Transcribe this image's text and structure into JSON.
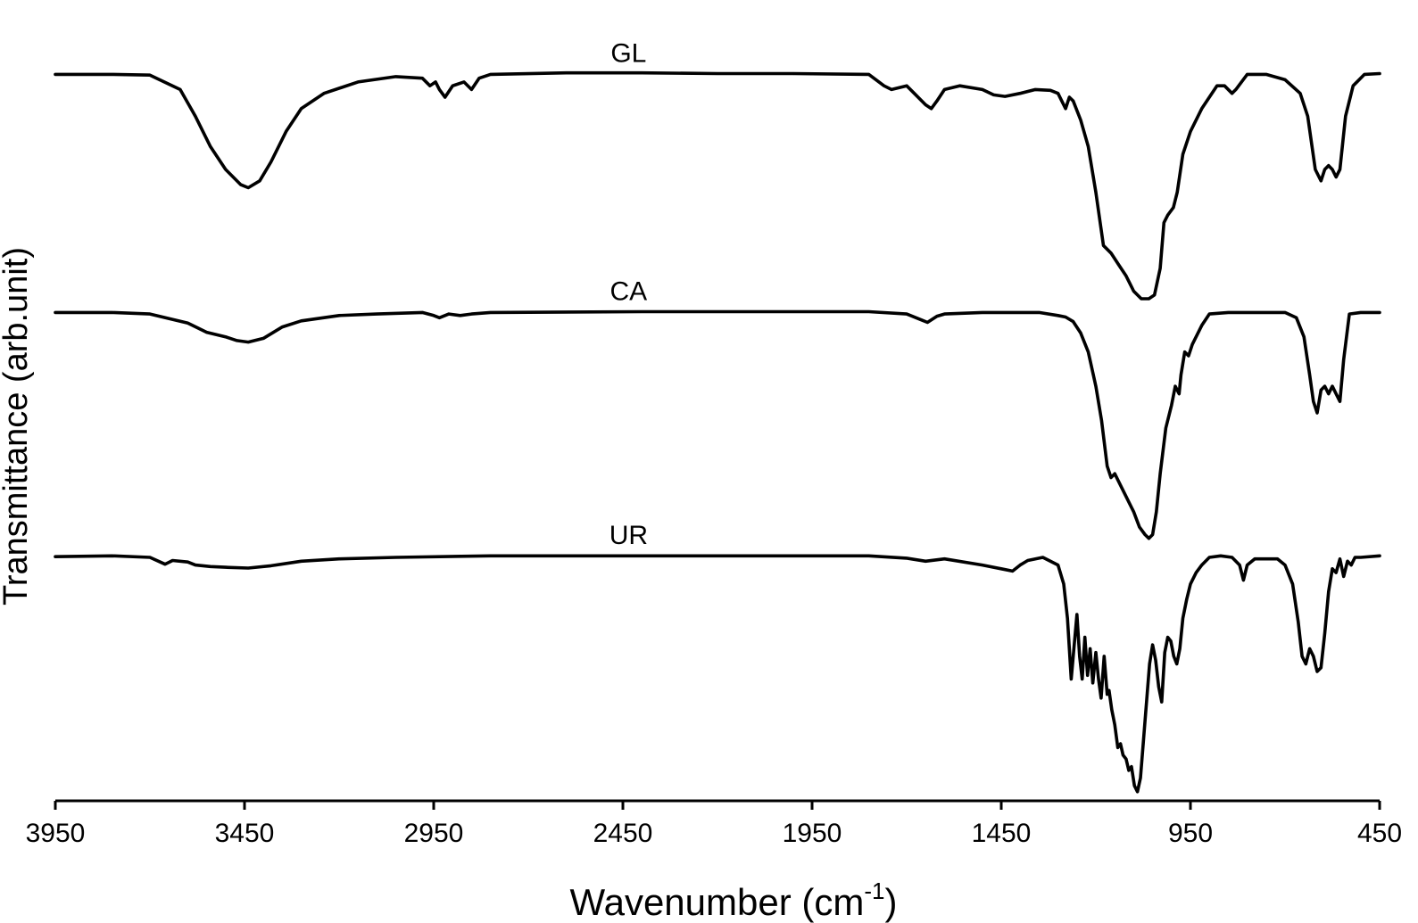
{
  "chart_data": {
    "type": "line",
    "title": "",
    "xlabel": "Wavenumber (cm",
    "xlabel_sup": "-1",
    "xlabel_close": ")",
    "ylabel": "Transmittance (arb.unit)",
    "xlim": [
      3950,
      450
    ],
    "x_reversed": true,
    "ylim": [
      0,
      1
    ],
    "y_ticks_shown": false,
    "grid": false,
    "legend": "none",
    "x_ticks": [
      3950,
      3450,
      2950,
      2450,
      1950,
      1450,
      950,
      450
    ],
    "x_tick_labels": [
      "3950",
      "3450",
      "2950",
      "2450",
      "1950",
      "1450",
      "950",
      "450"
    ],
    "line_color": "#000000",
    "series": [
      {
        "name": "GL",
        "points": [
          [
            3950,
            0.955
          ],
          [
            3800,
            0.955
          ],
          [
            3700,
            0.954
          ],
          [
            3620,
            0.935
          ],
          [
            3580,
            0.9
          ],
          [
            3540,
            0.86
          ],
          [
            3500,
            0.83
          ],
          [
            3460,
            0.81
          ],
          [
            3440,
            0.806
          ],
          [
            3410,
            0.815
          ],
          [
            3380,
            0.84
          ],
          [
            3340,
            0.88
          ],
          [
            3300,
            0.91
          ],
          [
            3240,
            0.93
          ],
          [
            3150,
            0.945
          ],
          [
            3050,
            0.952
          ],
          [
            2980,
            0.95
          ],
          [
            2960,
            0.94
          ],
          [
            2945,
            0.945
          ],
          [
            2935,
            0.935
          ],
          [
            2920,
            0.925
          ],
          [
            2900,
            0.94
          ],
          [
            2870,
            0.945
          ],
          [
            2850,
            0.935
          ],
          [
            2830,
            0.95
          ],
          [
            2800,
            0.955
          ],
          [
            2600,
            0.957
          ],
          [
            2400,
            0.957
          ],
          [
            2200,
            0.956
          ],
          [
            2000,
            0.956
          ],
          [
            1800,
            0.955
          ],
          [
            1760,
            0.94
          ],
          [
            1740,
            0.935
          ],
          [
            1700,
            0.94
          ],
          [
            1680,
            0.93
          ],
          [
            1650,
            0.915
          ],
          [
            1635,
            0.91
          ],
          [
            1620,
            0.92
          ],
          [
            1600,
            0.935
          ],
          [
            1560,
            0.94
          ],
          [
            1500,
            0.935
          ],
          [
            1470,
            0.928
          ],
          [
            1440,
            0.926
          ],
          [
            1400,
            0.93
          ],
          [
            1360,
            0.935
          ],
          [
            1320,
            0.934
          ],
          [
            1300,
            0.93
          ],
          [
            1290,
            0.92
          ],
          [
            1280,
            0.91
          ],
          [
            1270,
            0.925
          ],
          [
            1260,
            0.92
          ],
          [
            1240,
            0.895
          ],
          [
            1220,
            0.86
          ],
          [
            1200,
            0.8
          ],
          [
            1180,
            0.73
          ],
          [
            1160,
            0.72
          ],
          [
            1140,
            0.705
          ],
          [
            1120,
            0.69
          ],
          [
            1100,
            0.67
          ],
          [
            1080,
            0.66
          ],
          [
            1060,
            0.66
          ],
          [
            1045,
            0.665
          ],
          [
            1030,
            0.7
          ],
          [
            1020,
            0.76
          ],
          [
            1010,
            0.77
          ],
          [
            995,
            0.78
          ],
          [
            985,
            0.8
          ],
          [
            970,
            0.85
          ],
          [
            950,
            0.88
          ],
          [
            920,
            0.91
          ],
          [
            880,
            0.94
          ],
          [
            860,
            0.94
          ],
          [
            840,
            0.93
          ],
          [
            830,
            0.935
          ],
          [
            800,
            0.955
          ],
          [
            750,
            0.955
          ],
          [
            700,
            0.948
          ],
          [
            660,
            0.93
          ],
          [
            640,
            0.9
          ],
          [
            620,
            0.83
          ],
          [
            605,
            0.815
          ],
          [
            595,
            0.83
          ],
          [
            585,
            0.835
          ],
          [
            575,
            0.83
          ],
          [
            565,
            0.82
          ],
          [
            555,
            0.83
          ],
          [
            540,
            0.9
          ],
          [
            520,
            0.94
          ],
          [
            490,
            0.955
          ],
          [
            450,
            0.956
          ]
        ]
      },
      {
        "name": "CA",
        "points": [
          [
            3950,
            0.642
          ],
          [
            3800,
            0.642
          ],
          [
            3700,
            0.64
          ],
          [
            3600,
            0.628
          ],
          [
            3550,
            0.616
          ],
          [
            3500,
            0.61
          ],
          [
            3470,
            0.605
          ],
          [
            3440,
            0.603
          ],
          [
            3400,
            0.608
          ],
          [
            3350,
            0.623
          ],
          [
            3300,
            0.631
          ],
          [
            3200,
            0.638
          ],
          [
            3100,
            0.64
          ],
          [
            2980,
            0.642
          ],
          [
            2950,
            0.638
          ],
          [
            2935,
            0.635
          ],
          [
            2910,
            0.64
          ],
          [
            2880,
            0.638
          ],
          [
            2850,
            0.64
          ],
          [
            2800,
            0.642
          ],
          [
            2400,
            0.643
          ],
          [
            2000,
            0.643
          ],
          [
            1800,
            0.643
          ],
          [
            1700,
            0.64
          ],
          [
            1660,
            0.632
          ],
          [
            1645,
            0.629
          ],
          [
            1620,
            0.637
          ],
          [
            1600,
            0.64
          ],
          [
            1500,
            0.642
          ],
          [
            1350,
            0.642
          ],
          [
            1300,
            0.638
          ],
          [
            1280,
            0.636
          ],
          [
            1260,
            0.63
          ],
          [
            1240,
            0.615
          ],
          [
            1220,
            0.59
          ],
          [
            1200,
            0.545
          ],
          [
            1185,
            0.5
          ],
          [
            1170,
            0.44
          ],
          [
            1160,
            0.425
          ],
          [
            1150,
            0.43
          ],
          [
            1140,
            0.42
          ],
          [
            1120,
            0.4
          ],
          [
            1100,
            0.38
          ],
          [
            1085,
            0.36
          ],
          [
            1070,
            0.35
          ],
          [
            1060,
            0.345
          ],
          [
            1050,
            0.35
          ],
          [
            1040,
            0.38
          ],
          [
            1030,
            0.43
          ],
          [
            1015,
            0.49
          ],
          [
            1000,
            0.52
          ],
          [
            990,
            0.545
          ],
          [
            980,
            0.535
          ],
          [
            975,
            0.56
          ],
          [
            965,
            0.59
          ],
          [
            955,
            0.585
          ],
          [
            945,
            0.6
          ],
          [
            920,
            0.625
          ],
          [
            900,
            0.64
          ],
          [
            850,
            0.642
          ],
          [
            800,
            0.642
          ],
          [
            700,
            0.642
          ],
          [
            670,
            0.635
          ],
          [
            650,
            0.61
          ],
          [
            635,
            0.56
          ],
          [
            625,
            0.525
          ],
          [
            615,
            0.51
          ],
          [
            605,
            0.54
          ],
          [
            595,
            0.545
          ],
          [
            585,
            0.535
          ],
          [
            575,
            0.545
          ],
          [
            565,
            0.535
          ],
          [
            555,
            0.525
          ],
          [
            545,
            0.58
          ],
          [
            530,
            0.64
          ],
          [
            500,
            0.642
          ],
          [
            450,
            0.642
          ]
        ]
      },
      {
        "name": "UR",
        "points": [
          [
            3950,
            0.321
          ],
          [
            3800,
            0.322
          ],
          [
            3700,
            0.32
          ],
          [
            3660,
            0.311
          ],
          [
            3640,
            0.316
          ],
          [
            3600,
            0.314
          ],
          [
            3580,
            0.31
          ],
          [
            3560,
            0.309
          ],
          [
            3540,
            0.308
          ],
          [
            3500,
            0.307
          ],
          [
            3440,
            0.306
          ],
          [
            3380,
            0.309
          ],
          [
            3300,
            0.315
          ],
          [
            3200,
            0.318
          ],
          [
            3050,
            0.32
          ],
          [
            2800,
            0.322
          ],
          [
            2400,
            0.322
          ],
          [
            2000,
            0.322
          ],
          [
            1800,
            0.322
          ],
          [
            1700,
            0.319
          ],
          [
            1650,
            0.315
          ],
          [
            1600,
            0.318
          ],
          [
            1500,
            0.31
          ],
          [
            1450,
            0.305
          ],
          [
            1420,
            0.302
          ],
          [
            1400,
            0.31
          ],
          [
            1380,
            0.316
          ],
          [
            1340,
            0.32
          ],
          [
            1300,
            0.31
          ],
          [
            1285,
            0.285
          ],
          [
            1275,
            0.24
          ],
          [
            1265,
            0.16
          ],
          [
            1258,
            0.2
          ],
          [
            1250,
            0.245
          ],
          [
            1243,
            0.19
          ],
          [
            1236,
            0.16
          ],
          [
            1229,
            0.215
          ],
          [
            1222,
            0.165
          ],
          [
            1215,
            0.2
          ],
          [
            1208,
            0.155
          ],
          [
            1200,
            0.195
          ],
          [
            1193,
            0.16
          ],
          [
            1186,
            0.135
          ],
          [
            1178,
            0.19
          ],
          [
            1170,
            0.14
          ],
          [
            1165,
            0.145
          ],
          [
            1158,
            0.12
          ],
          [
            1150,
            0.1
          ],
          [
            1142,
            0.07
          ],
          [
            1135,
            0.075
          ],
          [
            1128,
            0.06
          ],
          [
            1120,
            0.055
          ],
          [
            1113,
            0.04
          ],
          [
            1106,
            0.045
          ],
          [
            1098,
            0.02
          ],
          [
            1090,
            0.012
          ],
          [
            1082,
            0.03
          ],
          [
            1074,
            0.08
          ],
          [
            1066,
            0.13
          ],
          [
            1058,
            0.18
          ],
          [
            1050,
            0.205
          ],
          [
            1042,
            0.185
          ],
          [
            1034,
            0.15
          ],
          [
            1026,
            0.13
          ],
          [
            1018,
            0.195
          ],
          [
            1010,
            0.215
          ],
          [
            1002,
            0.21
          ],
          [
            994,
            0.19
          ],
          [
            986,
            0.18
          ],
          [
            978,
            0.2
          ],
          [
            970,
            0.24
          ],
          [
            960,
            0.265
          ],
          [
            950,
            0.285
          ],
          [
            935,
            0.3
          ],
          [
            920,
            0.31
          ],
          [
            900,
            0.32
          ],
          [
            870,
            0.322
          ],
          [
            840,
            0.32
          ],
          [
            820,
            0.31
          ],
          [
            810,
            0.29
          ],
          [
            800,
            0.31
          ],
          [
            780,
            0.318
          ],
          [
            720,
            0.318
          ],
          [
            700,
            0.31
          ],
          [
            680,
            0.285
          ],
          [
            665,
            0.235
          ],
          [
            655,
            0.19
          ],
          [
            645,
            0.18
          ],
          [
            635,
            0.2
          ],
          [
            625,
            0.19
          ],
          [
            615,
            0.17
          ],
          [
            605,
            0.175
          ],
          [
            595,
            0.22
          ],
          [
            585,
            0.275
          ],
          [
            575,
            0.305
          ],
          [
            565,
            0.3
          ],
          [
            555,
            0.318
          ],
          [
            545,
            0.295
          ],
          [
            535,
            0.315
          ],
          [
            525,
            0.31
          ],
          [
            515,
            0.32
          ],
          [
            500,
            0.32
          ],
          [
            450,
            0.322
          ]
        ]
      }
    ]
  }
}
